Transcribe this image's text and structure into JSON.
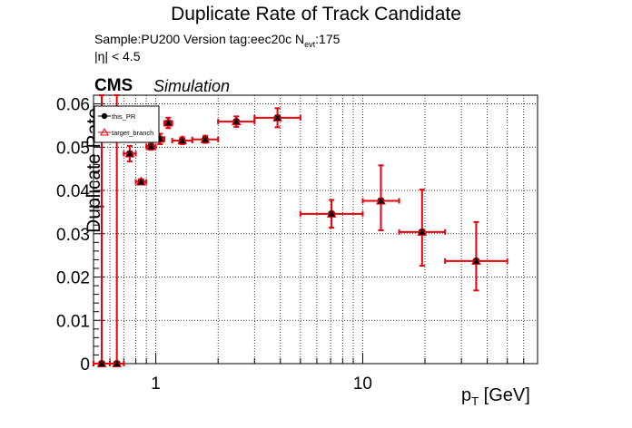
{
  "texts": {
    "title": "Duplicate Rate of Track Candidate",
    "sample": "Sample:PU200   Version tag:eec20c  N",
    "sample_sub": "evt",
    "sample_tail": ":175",
    "eta_cut": "|η| < 4.5",
    "cms": "CMS",
    "simulation": "Simulation",
    "xlabel_main": "p",
    "xlabel_sub": "T",
    "xlabel_unit": " [GeV]"
  },
  "colors": {
    "this_pr": "#000000",
    "target_branch": "#e8000b",
    "grid": "#000000"
  },
  "chart_data": {
    "type": "scatter",
    "title": "Duplicate Rate of Track Candidate",
    "xlabel": "pT [GeV]",
    "ylabel": "Duplicate Rate",
    "xscale": "log",
    "xlim": [
      0.5,
      70
    ],
    "ylim": [
      0,
      0.062
    ],
    "grid": true,
    "legend_position": "top-left",
    "yticks": [
      {
        "v": 0,
        "label": "0"
      },
      {
        "v": 0.01,
        "label": "0.01"
      },
      {
        "v": 0.02,
        "label": "0.02"
      },
      {
        "v": 0.03,
        "label": "0.03"
      },
      {
        "v": 0.04,
        "label": "0.04"
      },
      {
        "v": 0.05,
        "label": "0.05"
      },
      {
        "v": 0.06,
        "label": "0.06"
      }
    ],
    "xticks": [
      {
        "v": 1,
        "label": "1"
      },
      {
        "v": 10,
        "label": "10"
      }
    ],
    "bins": [
      {
        "xlo": 0.5,
        "xhi": 0.6,
        "y": 0.0,
        "elo": 0.0,
        "ehi": 0.062
      },
      {
        "xlo": 0.6,
        "xhi": 0.7,
        "y": 0.0,
        "elo": 0.0,
        "ehi": 0.062
      },
      {
        "xlo": 0.7,
        "xhi": 0.8,
        "y": 0.0485,
        "elo": 0.0018,
        "ehi": 0.0018
      },
      {
        "xlo": 0.8,
        "xhi": 0.9,
        "y": 0.042,
        "elo": 0.0006,
        "ehi": 0.0006
      },
      {
        "xlo": 0.9,
        "xhi": 1.0,
        "y": 0.0502,
        "elo": 0.0008,
        "ehi": 0.0008
      },
      {
        "xlo": 1.0,
        "xhi": 1.1,
        "y": 0.0519,
        "elo": 0.0012,
        "ehi": 0.0012
      },
      {
        "xlo": 1.1,
        "xhi": 1.2,
        "y": 0.0556,
        "elo": 0.0012,
        "ehi": 0.0012
      },
      {
        "xlo": 1.2,
        "xhi": 1.5,
        "y": 0.0515,
        "elo": 0.0008,
        "ehi": 0.0008
      },
      {
        "xlo": 1.5,
        "xhi": 2.0,
        "y": 0.0518,
        "elo": 0.0008,
        "ehi": 0.0008
      },
      {
        "xlo": 2.0,
        "xhi": 3.0,
        "y": 0.0559,
        "elo": 0.0012,
        "ehi": 0.0012
      },
      {
        "xlo": 3.0,
        "xhi": 5.0,
        "y": 0.0568,
        "elo": 0.0022,
        "ehi": 0.0022
      },
      {
        "xlo": 5.0,
        "xhi": 10.0,
        "y": 0.0346,
        "elo": 0.0032,
        "ehi": 0.0032
      },
      {
        "xlo": 10.0,
        "xhi": 15.0,
        "y": 0.0376,
        "elo": 0.0068,
        "ehi": 0.0082
      },
      {
        "xlo": 15.0,
        "xhi": 25.0,
        "y": 0.0304,
        "elo": 0.0078,
        "ehi": 0.0098
      },
      {
        "xlo": 25.0,
        "xhi": 50.0,
        "y": 0.0237,
        "elo": 0.0068,
        "ehi": 0.009
      }
    ],
    "series": [
      {
        "name": "this_PR",
        "marker": "circle",
        "color": "#000000"
      },
      {
        "name": "target_branch",
        "marker": "triangle",
        "color": "#e8000b"
      }
    ]
  }
}
